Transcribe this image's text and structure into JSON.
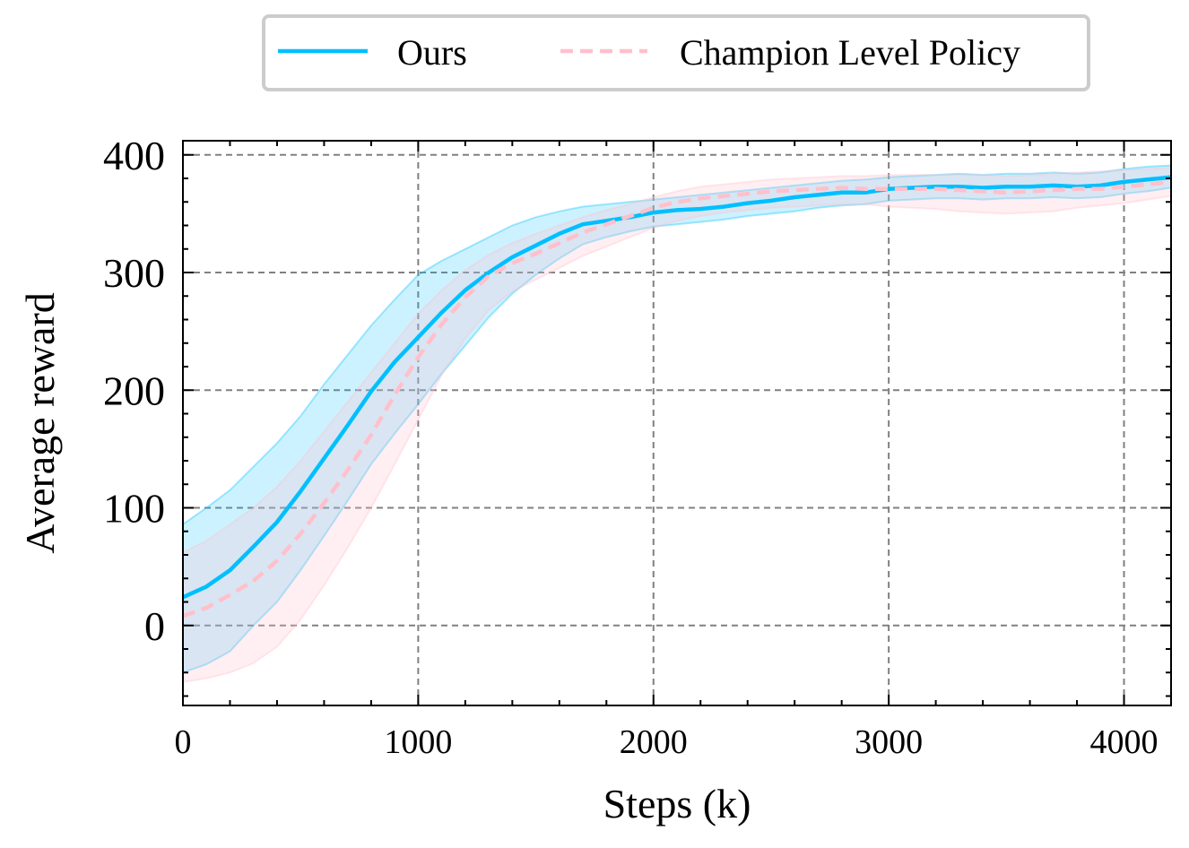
{
  "chart_data": {
    "type": "line",
    "xlabel": "Steps (k)",
    "ylabel": "Average reward",
    "xlim": [
      0,
      4200
    ],
    "ylim": [
      -68,
      412
    ],
    "grid": true,
    "legend_position": "top-center",
    "x_ticks": [
      0,
      1000,
      2000,
      3000,
      4000
    ],
    "x_tick_labels": [
      "0",
      "1000",
      "2000",
      "3000",
      "4000"
    ],
    "y_ticks": [
      0,
      100,
      200,
      300,
      400
    ],
    "y_tick_labels": [
      "0",
      "100",
      "200",
      "300",
      "400"
    ],
    "series": [
      {
        "name": "Ours",
        "color": "#00bfff",
        "style": "solid",
        "x": [
          0,
          100,
          200,
          300,
          400,
          500,
          600,
          700,
          800,
          900,
          1000,
          1100,
          1200,
          1300,
          1400,
          1500,
          1600,
          1700,
          1800,
          1900,
          2000,
          2100,
          2200,
          2300,
          2400,
          2500,
          2600,
          2700,
          2800,
          2900,
          3000,
          3100,
          3200,
          3300,
          3400,
          3500,
          3600,
          3700,
          3800,
          3900,
          4000,
          4100,
          4200
        ],
        "y": [
          24,
          33,
          47,
          67,
          88,
          114,
          142,
          170,
          199,
          224,
          245,
          266,
          285,
          300,
          313,
          323,
          333,
          341,
          344,
          347,
          351,
          353,
          354,
          356,
          359,
          361,
          364,
          366,
          368,
          368,
          371,
          372,
          373,
          373,
          372,
          373,
          373,
          374,
          373,
          374,
          377,
          379,
          381
        ],
        "lower": [
          -40,
          -33,
          -22,
          0,
          20,
          47,
          76,
          106,
          137,
          163,
          188,
          214,
          238,
          262,
          282,
          298,
          312,
          324,
          330,
          335,
          339,
          341,
          343,
          345,
          348,
          350,
          352,
          355,
          357,
          358,
          361,
          362,
          363,
          363,
          362,
          363,
          363,
          364,
          363,
          364,
          367,
          369,
          372
        ],
        "upper": [
          86,
          100,
          115,
          135,
          155,
          178,
          205,
          230,
          255,
          277,
          298,
          310,
          320,
          330,
          340,
          347,
          352,
          356,
          358,
          360,
          362,
          364,
          366,
          368,
          370,
          372,
          374,
          376,
          378,
          379,
          381,
          382,
          383,
          384,
          383,
          384,
          384,
          385,
          384,
          385,
          388,
          390,
          391
        ]
      },
      {
        "name": "Champion Level Policy",
        "color": "#ffc0cb",
        "style": "dashed",
        "x": [
          0,
          100,
          200,
          300,
          400,
          500,
          600,
          700,
          800,
          900,
          1000,
          1100,
          1200,
          1300,
          1400,
          1500,
          1600,
          1700,
          1800,
          1900,
          2000,
          2100,
          2200,
          2300,
          2400,
          2500,
          2600,
          2700,
          2800,
          2900,
          3000,
          3100,
          3200,
          3300,
          3400,
          3500,
          3600,
          3700,
          3800,
          3900,
          4000,
          4100,
          4200
        ],
        "y": [
          8,
          15,
          26,
          38,
          55,
          78,
          104,
          132,
          162,
          196,
          228,
          256,
          279,
          297,
          308,
          316,
          325,
          334,
          341,
          348,
          355,
          360,
          363,
          365,
          367,
          369,
          370,
          371,
          372,
          371,
          371,
          371,
          371,
          370,
          369,
          368,
          369,
          370,
          371,
          371,
          373,
          375,
          377
        ],
        "lower": [
          -48,
          -45,
          -40,
          -32,
          -18,
          5,
          34,
          66,
          100,
          137,
          175,
          213,
          244,
          268,
          284,
          294,
          304,
          314,
          322,
          330,
          338,
          344,
          348,
          351,
          353,
          355,
          356,
          357,
          358,
          358,
          356,
          355,
          354,
          352,
          351,
          350,
          351,
          352,
          355,
          357,
          359,
          362,
          365
        ],
        "upper": [
          62,
          72,
          86,
          100,
          118,
          140,
          165,
          190,
          215,
          240,
          265,
          285,
          302,
          315,
          325,
          333,
          340,
          347,
          353,
          358,
          364,
          369,
          373,
          375,
          377,
          379,
          380,
          381,
          382,
          382,
          383,
          383,
          383,
          383,
          383,
          382,
          383,
          384,
          385,
          386,
          387,
          388,
          389
        ]
      }
    ]
  }
}
